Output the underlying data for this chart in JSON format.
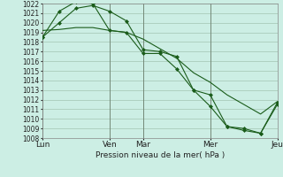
{
  "background_color": "#cceee4",
  "grid_color": "#aaccbb",
  "line_color": "#1a5c1a",
  "marker_color": "#1a5c1a",
  "ylabel_min": 1008,
  "ylabel_max": 1022,
  "xlabel": "Pression niveau de la mer( hPa )",
  "series1_x": [
    0.0,
    0.5,
    1.0,
    1.5,
    2.0,
    2.5,
    3.0,
    3.5,
    4.0,
    4.5,
    5.0,
    5.5,
    6.0,
    6.5,
    7.0
  ],
  "series1_y": [
    1018.5,
    1021.2,
    1022.2,
    1022.0,
    1019.2,
    1019.0,
    1016.8,
    1016.8,
    1015.2,
    1013.0,
    1011.3,
    1009.2,
    1009.0,
    1008.5,
    1011.5
  ],
  "series2_x": [
    0.0,
    0.5,
    1.0,
    1.5,
    2.0,
    2.5,
    3.0,
    3.5,
    4.0,
    4.5,
    5.0,
    5.5,
    6.0,
    6.5,
    7.0
  ],
  "series2_y": [
    1019.2,
    1019.3,
    1019.5,
    1019.5,
    1019.2,
    1019.0,
    1018.3,
    1017.3,
    1016.3,
    1014.8,
    1013.8,
    1012.5,
    1011.5,
    1010.5,
    1011.8
  ],
  "series3_x": [
    0.0,
    0.5,
    1.0,
    1.5,
    2.0,
    2.5,
    3.0,
    3.5,
    4.0,
    4.5,
    5.0,
    5.5,
    6.0,
    6.5,
    7.0
  ],
  "series3_y": [
    1018.5,
    1020.0,
    1021.5,
    1021.8,
    1021.2,
    1020.2,
    1017.2,
    1017.0,
    1016.5,
    1013.0,
    1012.5,
    1009.2,
    1008.8,
    1008.5,
    1011.7
  ],
  "xtick_positions": [
    0,
    2,
    3,
    5,
    7
  ],
  "xtick_labels": [
    "Lun",
    "Ven",
    "Mar",
    "Mer",
    "Jeu"
  ],
  "vline_positions": [
    0.0,
    2.0,
    3.0,
    5.0,
    7.0
  ],
  "vline_color": "#667766"
}
